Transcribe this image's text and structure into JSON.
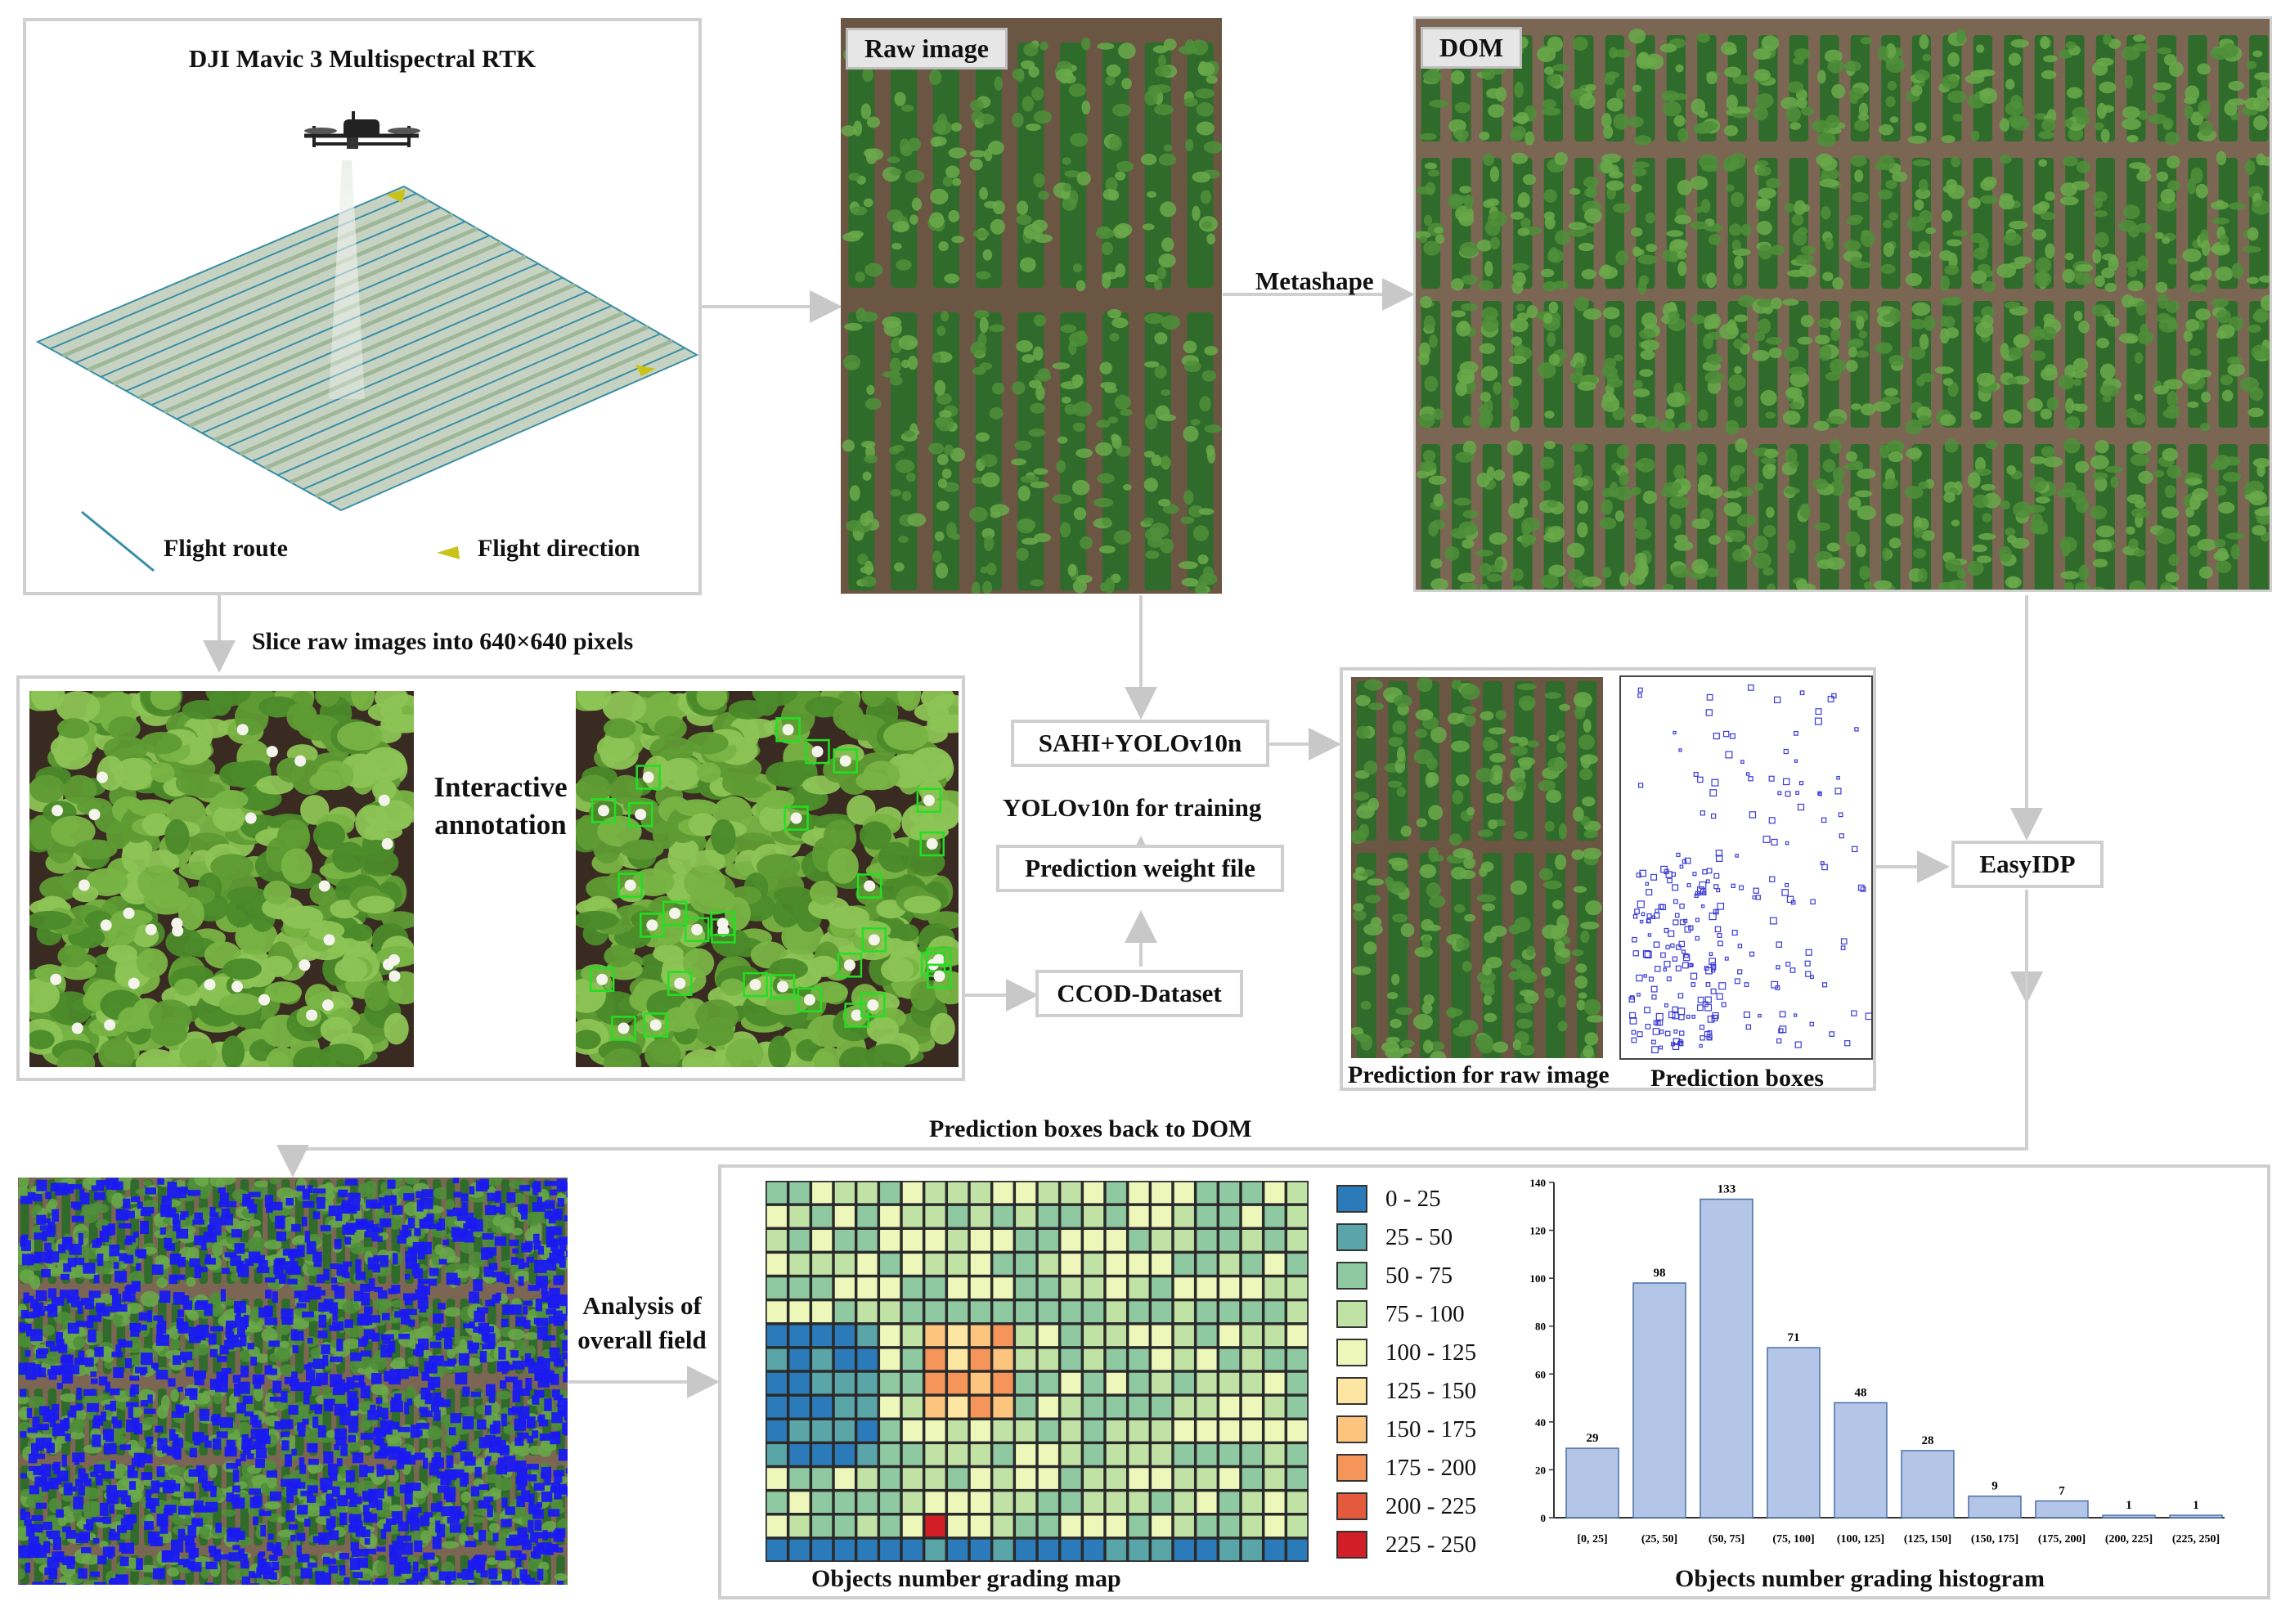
{
  "uav_panel": {
    "title": "DJI Mavic 3 Multispectral RTK",
    "legend_route": "Flight route",
    "legend_direction": "Flight direction"
  },
  "raw_image": {
    "tag": "Raw image"
  },
  "dom": {
    "tag": "DOM"
  },
  "steps": {
    "metashape": "Metashape",
    "slice": "Slice raw images into 640×640 pixels",
    "interactive": "Interactive",
    "annotation": "annotation",
    "sahi": "SAHI+YOLOv10n",
    "yolo_training": "YOLOv10n for training",
    "weight_file": "Prediction weight file",
    "dataset": "CCOD-Dataset",
    "easyidp": "EasyIDP",
    "back_to_dom": "Prediction boxes back to DOM",
    "analysis_1": "Analysis of",
    "analysis_2": "overall field"
  },
  "prediction": {
    "raw_caption": "Prediction for raw image",
    "boxes_caption": "Prediction boxes"
  },
  "grading_map": {
    "caption": "Objects number grading map",
    "legend": [
      {
        "label": "0 - 25",
        "color": "#2b7bba"
      },
      {
        "label": "25 - 50",
        "color": "#5aa5a8"
      },
      {
        "label": "50 - 75",
        "color": "#8ec9a1"
      },
      {
        "label": "75 - 100",
        "color": "#c0e3a5"
      },
      {
        "label": "100 - 125",
        "color": "#ecf7b9"
      },
      {
        "label": "125 - 150",
        "color": "#fde6a2"
      },
      {
        "label": "150 - 175",
        "color": "#fcc47c"
      },
      {
        "label": "175 - 200",
        "color": "#f5955a"
      },
      {
        "label": "200 - 225",
        "color": "#e45a3c"
      },
      {
        "label": "225 - 250",
        "color": "#d21e26"
      }
    ]
  },
  "chart_data": {
    "type": "bar",
    "title": "Objects number grading histogram",
    "categories": [
      "[0, 25]",
      "(25, 50]",
      "(50, 75]",
      "(75, 100]",
      "(100, 125]",
      "(125, 150]",
      "(150, 175]",
      "(175, 200]",
      "(200, 225]",
      "(225, 250]"
    ],
    "values": [
      29,
      98,
      133,
      71,
      48,
      28,
      9,
      7,
      1,
      1
    ],
    "ylim": [
      0,
      140
    ],
    "yticks": [
      0,
      20,
      40,
      60,
      80,
      100,
      120,
      140
    ],
    "bar_color": "#b4c6e7",
    "bar_edge": "#4a6fa8"
  }
}
